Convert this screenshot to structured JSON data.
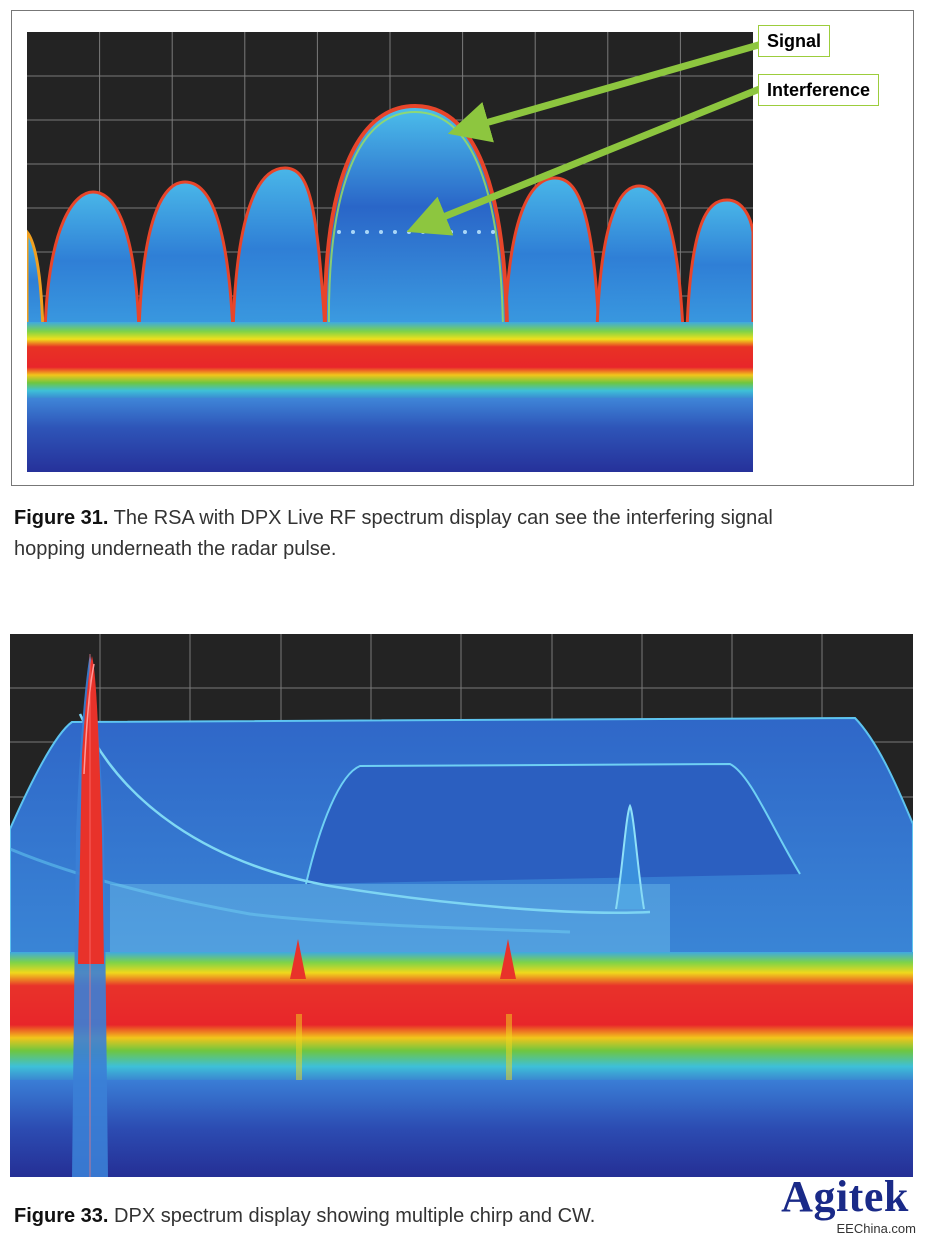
{
  "figure31": {
    "callout_signal": "Signal",
    "callout_interference": "Interference",
    "caption_label": "Figure 31.",
    "caption_line1": " The RSA with DPX Live RF spectrum display can see the interfering signal",
    "caption_line2": "hopping underneath the radar pulse."
  },
  "figure33": {
    "caption_label": "Figure 33.",
    "caption_text": " DPX spectrum display showing multiple chirp and CW."
  },
  "logo": {
    "name": "Agitek",
    "site": "EEChina.com",
    "color": "#1a2a88"
  },
  "colors": {
    "arrow": "#8dc63f",
    "plot_background": "#222222",
    "grid": "#7a7a7a",
    "density_high": "#e8262a",
    "density_mid": "#f2d31b",
    "density_low": "#3fa9e0",
    "density_floor": "#2b3ca8"
  }
}
